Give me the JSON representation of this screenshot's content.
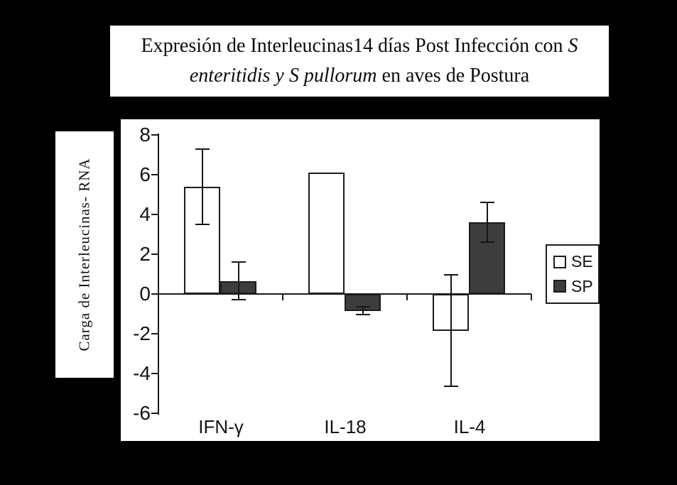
{
  "figure": {
    "title_plain": "Expresión de Interleucinas14 días Post Infección con S enteritidis y S pullorum en aves de Postura",
    "title_lines": [
      [
        {
          "t": "Expresión de Interleucinas14 días Post Infección con ",
          "i": 0
        },
        {
          "t": "S",
          "i": 1
        }
      ],
      [
        {
          "t": "enteritidis y S pullorum",
          "i": 1
        },
        {
          "t": " en aves de Postura",
          "i": 0
        }
      ]
    ]
  },
  "colors": {
    "background": "#000000",
    "panel": "#ffffff",
    "axis": "#1c1c1c",
    "bar_se_fill": "#ffffff",
    "bar_sp_fill": "#3d3d3d"
  },
  "chart_data": {
    "type": "bar",
    "title": "Expresión de Interleucinas14 días Post Infección con S enteritidis y S pullorum en aves de Postura",
    "categories": [
      "IFN-γ",
      "IL-18",
      "IL-4"
    ],
    "series": [
      {
        "name": "SE",
        "fill": "#ffffff",
        "values": [
          5.4,
          6.1,
          -1.85
        ],
        "errors": [
          1.9,
          null,
          2.8
        ]
      },
      {
        "name": "SP",
        "fill": "#3d3d3d",
        "values": [
          0.65,
          -0.85,
          3.6
        ],
        "errors": [
          0.95,
          0.2,
          1.0
        ]
      }
    ],
    "xlabel": "",
    "ylabel": "Carga de Interleucinas- RNA",
    "ylim": [
      -6,
      8
    ],
    "yticks": [
      8,
      6,
      4,
      2,
      0,
      -2,
      -4,
      -6
    ],
    "grid": false,
    "legend_position": "right-inside",
    "error_bars": true
  }
}
